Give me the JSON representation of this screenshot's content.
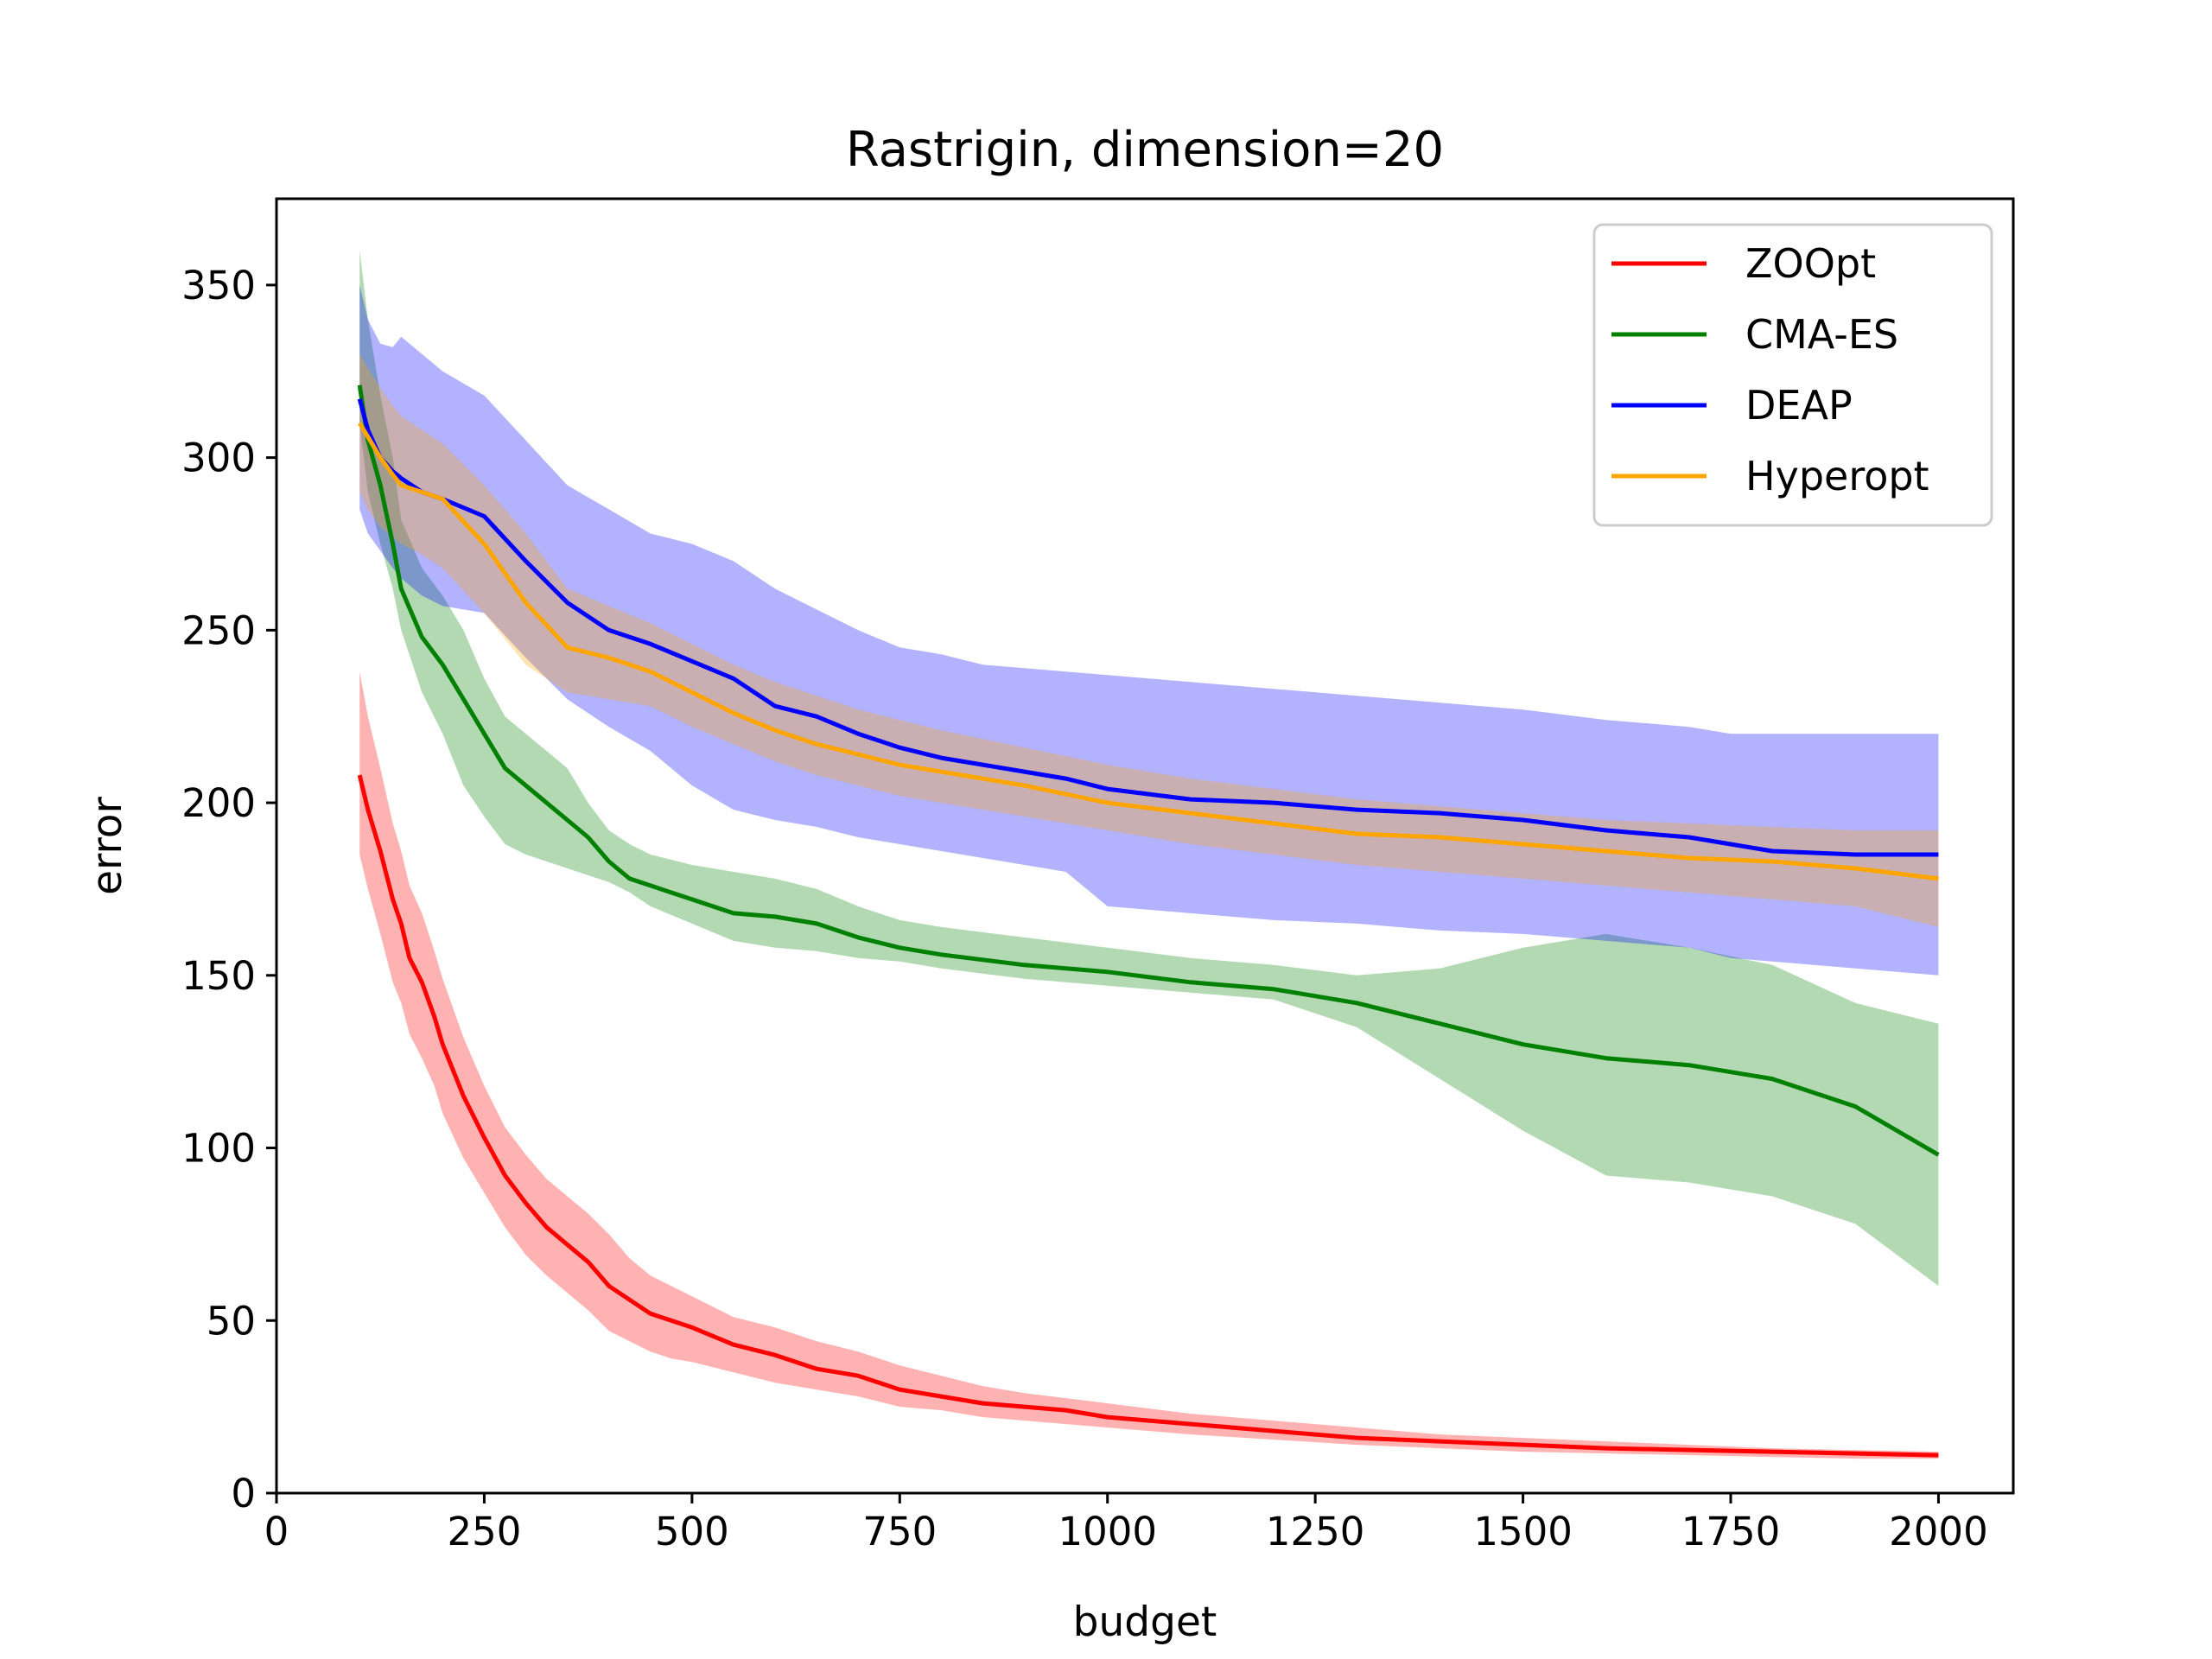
{
  "chart_data": {
    "type": "line",
    "title": "Rastrigin, dimension=20",
    "xlabel": "budget",
    "ylabel": "error",
    "xlim": [
      0,
      2090
    ],
    "ylim": [
      0,
      375
    ],
    "xticks": [
      0,
      250,
      500,
      750,
      1000,
      1250,
      1500,
      1750,
      2000
    ],
    "yticks": [
      0,
      50,
      100,
      150,
      200,
      250,
      300,
      350
    ],
    "grid": false,
    "legend_position": "top-right",
    "series": [
      {
        "name": "ZOOpt",
        "color": "#ff0000",
        "x": [
          100,
          110,
          125,
          140,
          150,
          160,
          175,
          190,
          200,
          225,
          250,
          275,
          300,
          325,
          350,
          375,
          400,
          425,
          450,
          475,
          500,
          550,
          600,
          650,
          700,
          750,
          800,
          850,
          900,
          950,
          1000,
          1100,
          1200,
          1300,
          1400,
          1500,
          1600,
          1700,
          1800,
          1900,
          2000
        ],
        "mean": [
          208,
          198,
          186,
          172,
          165,
          155,
          148,
          138,
          130,
          115,
          103,
          92,
          84,
          77,
          72,
          67,
          60,
          56,
          52,
          50,
          48,
          43,
          40,
          36,
          34,
          30,
          28,
          26,
          25,
          24,
          22,
          20,
          18,
          16,
          15,
          14,
          13,
          12.5,
          12,
          11.5,
          11
        ],
        "lower": [
          185,
          175,
          162,
          148,
          142,
          133,
          126,
          118,
          110,
          97,
          87,
          77,
          69,
          63,
          58,
          53,
          47,
          44,
          41,
          39,
          38,
          35,
          32,
          30,
          28,
          25,
          24,
          22,
          21,
          20,
          19,
          17,
          15.5,
          14,
          13,
          12,
          11.5,
          11,
          10.5,
          10,
          10
        ],
        "upper": [
          238,
          225,
          210,
          194,
          186,
          176,
          168,
          157,
          149,
          132,
          118,
          106,
          98,
          91,
          86,
          81,
          75,
          68,
          63,
          60,
          57,
          51,
          48,
          44,
          41,
          37,
          34,
          31,
          29,
          27.5,
          26,
          23,
          21,
          19,
          17,
          16,
          15,
          14,
          13,
          12.5,
          12
        ]
      },
      {
        "name": "CMA-ES",
        "color": "#008000",
        "x": [
          100,
          110,
          125,
          140,
          150,
          175,
          200,
          225,
          250,
          275,
          300,
          325,
          350,
          375,
          400,
          425,
          450,
          500,
          550,
          600,
          650,
          700,
          750,
          800,
          900,
          1000,
          1100,
          1200,
          1300,
          1400,
          1500,
          1600,
          1700,
          1800,
          1900,
          2000
        ],
        "mean": [
          321,
          305,
          292,
          275,
          262,
          248,
          240,
          230,
          220,
          210,
          205,
          200,
          195,
          190,
          183,
          178,
          176,
          172,
          168,
          167,
          165,
          161,
          158,
          156,
          153,
          151,
          148,
          146,
          142,
          136,
          130,
          126,
          124,
          120,
          112,
          98
        ],
        "lower": [
          310,
          290,
          275,
          262,
          250,
          232,
          220,
          205,
          196,
          188,
          185,
          183,
          181,
          179,
          177,
          174,
          170,
          165,
          160,
          158,
          157,
          155,
          154,
          152,
          149,
          147,
          145,
          143,
          135,
          120,
          105,
          92,
          90,
          86,
          78,
          60
        ],
        "upper": [
          360,
          340,
          318,
          300,
          282,
          268,
          260,
          250,
          236,
          225,
          220,
          215,
          210,
          200,
          192,
          188,
          185,
          182,
          180,
          178,
          175,
          170,
          166,
          164,
          161,
          158,
          155,
          153,
          150,
          152,
          158,
          162,
          158,
          153,
          142,
          136
        ]
      },
      {
        "name": "DEAP",
        "color": "#0000ff",
        "x": [
          100,
          110,
          125,
          140,
          150,
          175,
          200,
          250,
          300,
          350,
          400,
          450,
          500,
          550,
          600,
          650,
          700,
          750,
          800,
          850,
          900,
          950,
          1000,
          1100,
          1200,
          1300,
          1400,
          1500,
          1600,
          1700,
          1750,
          1800,
          1900,
          2000
        ],
        "mean": [
          317,
          308,
          300,
          296,
          294,
          290,
          288,
          283,
          270,
          258,
          250,
          246,
          241,
          236,
          228,
          225,
          220,
          216,
          213,
          211,
          209,
          207,
          204,
          201,
          200,
          198,
          197,
          195,
          192,
          190,
          188,
          186,
          185,
          185
        ],
        "lower": [
          285,
          278,
          273,
          268,
          265,
          260,
          257,
          255,
          242,
          230,
          222,
          215,
          205,
          198,
          195,
          193,
          190,
          188,
          186,
          184,
          182,
          180,
          170,
          168,
          166,
          165,
          163,
          162,
          160,
          158,
          155,
          154,
          152,
          150
        ],
        "upper": [
          350,
          340,
          333,
          332,
          335,
          330,
          325,
          318,
          305,
          292,
          285,
          278,
          275,
          270,
          262,
          256,
          250,
          245,
          243,
          240,
          239,
          238,
          237,
          235,
          233,
          231,
          229,
          227,
          224,
          222,
          220,
          220,
          220,
          220
        ]
      },
      {
        "name": "Hyperopt",
        "color": "#ffa500",
        "x": [
          100,
          110,
          125,
          140,
          150,
          175,
          200,
          250,
          300,
          350,
          400,
          450,
          500,
          550,
          600,
          650,
          700,
          750,
          800,
          900,
          1000,
          1100,
          1200,
          1300,
          1400,
          1500,
          1600,
          1700,
          1800,
          1900,
          2000
        ],
        "mean": [
          310,
          306,
          300,
          295,
          292,
          290,
          288,
          275,
          258,
          245,
          242,
          238,
          232,
          226,
          221,
          217,
          214,
          211,
          209,
          205,
          200,
          197,
          194,
          191,
          190,
          188,
          186,
          184,
          183,
          181,
          178
        ],
        "lower": [
          290,
          285,
          280,
          277,
          275,
          272,
          268,
          255,
          240,
          232,
          230,
          228,
          222,
          217,
          212,
          208,
          205,
          202,
          200,
          196,
          192,
          188,
          185,
          182,
          180,
          178,
          176,
          174,
          172,
          170,
          164
        ],
        "upper": [
          330,
          326,
          320,
          315,
          312,
          308,
          304,
          292,
          278,
          262,
          257,
          252,
          246,
          240,
          235,
          231,
          227,
          224,
          221,
          216,
          211,
          207,
          204,
          201,
          199,
          197,
          195,
          194,
          193,
          192,
          192
        ]
      }
    ]
  }
}
